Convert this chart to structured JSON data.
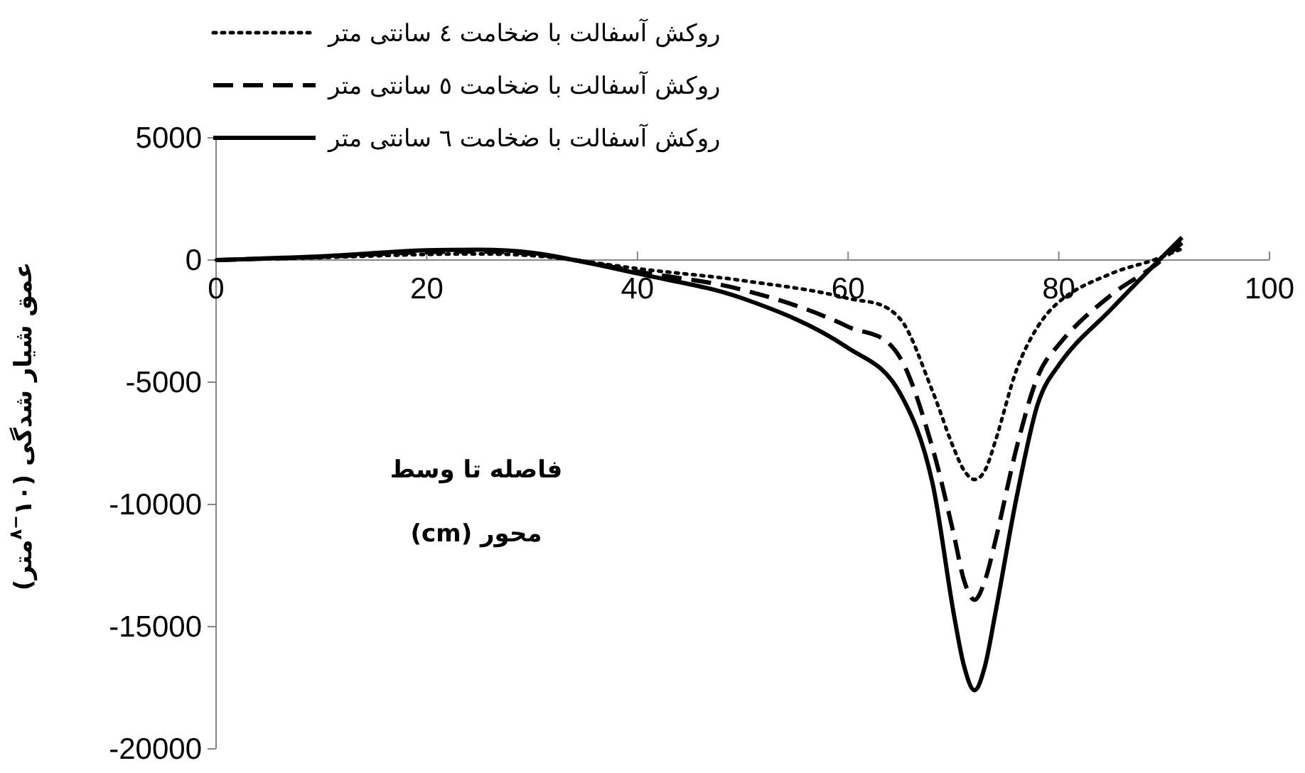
{
  "chart_data": {
    "type": "line",
    "xlabel": "فاصله تا وسط محور (cm)",
    "ylabel": "عمق شیار شدگی (۱۰$^{−۸}$متر)",
    "x": [
      0,
      10,
      20,
      25,
      30,
      34,
      40,
      50,
      60,
      65,
      68,
      70,
      71,
      72,
      73,
      74,
      76,
      78,
      80,
      85,
      89,
      91.7
    ],
    "series": [
      {
        "name": "روکش آسفالت با ضخامت ٤ سانتی متر",
        "color": "#000000",
        "line_style": "dotted",
        "values": [
          0,
          100,
          230,
          250,
          180,
          0,
          -350,
          -840,
          -1570,
          -2440,
          -5350,
          -7670,
          -8600,
          -8980,
          -8600,
          -7380,
          -4480,
          -2730,
          -1720,
          -550,
          0,
          460
        ]
      },
      {
        "name": "روکش آسفالت با ضخامت ٥ سانتی متر",
        "color": "#000000",
        "line_style": "dashed",
        "values": [
          0,
          130,
          330,
          350,
          250,
          0,
          -470,
          -1220,
          -2730,
          -4040,
          -7670,
          -11160,
          -13100,
          -13900,
          -13100,
          -11450,
          -7670,
          -4770,
          -3460,
          -1420,
          -260,
          700
        ]
      },
      {
        "name": "روکش آسفالت با ضخامت ٦ سانتی متر",
        "color": "#000000",
        "line_style": "solid",
        "values": [
          0,
          150,
          400,
          420,
          300,
          0,
          -550,
          -1570,
          -3600,
          -5500,
          -9100,
          -14400,
          -16600,
          -17600,
          -16600,
          -14400,
          -9700,
          -5900,
          -4300,
          -2000,
          -230,
          930
        ]
      }
    ],
    "xlim": [
      0,
      100
    ],
    "xticks": [
      0,
      20,
      40,
      60,
      80,
      100
    ],
    "ylim": [
      -20000,
      5000
    ],
    "yticks": [
      5000,
      0,
      -5000,
      -10000,
      -15000,
      -20000
    ],
    "legend": "top"
  }
}
